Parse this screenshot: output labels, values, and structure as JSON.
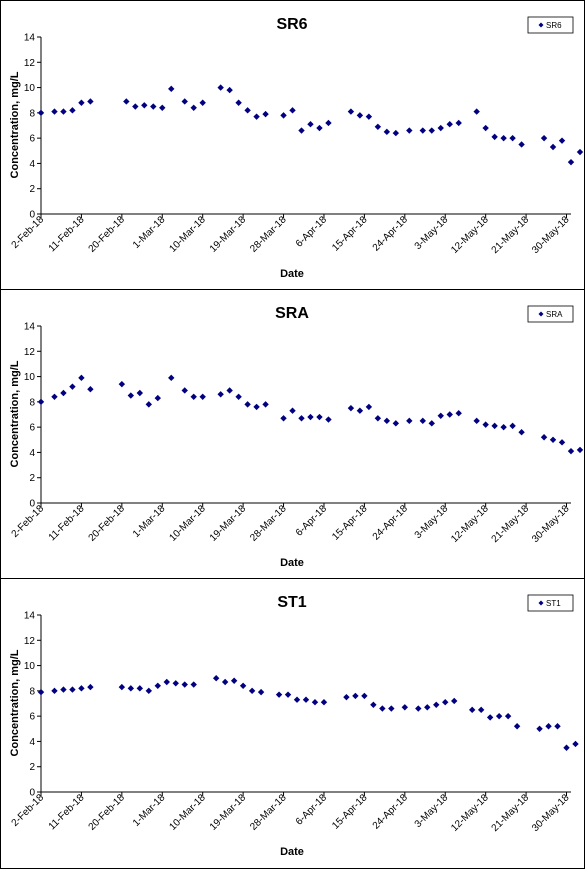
{
  "chart_data": [
    {
      "type": "scatter",
      "title": "SR6",
      "xlabel": "Date",
      "ylabel": "Concentration, mg/L",
      "ylim": [
        0,
        14
      ],
      "yticks": [
        "0",
        "2",
        "4",
        "6",
        "8",
        "10",
        "12",
        "14"
      ],
      "xlim": [
        "2018-02-02",
        "2018-05-31"
      ],
      "xticks": [
        "2-Feb-18",
        "11-Feb-18",
        "20-Feb-18",
        "1-Mar-18",
        "10-Mar-18",
        "19-Mar-18",
        "28-Mar-18",
        "6-Apr-18",
        "15-Apr-18",
        "24-Apr-18",
        "3-May-18",
        "12-May-18",
        "21-May-18",
        "30-May-18"
      ],
      "grid": false,
      "legend_position": "top-right",
      "marker_color": "#000080",
      "series": [
        {
          "name": "SR6",
          "x": [
            "2018-02-02",
            "2018-02-05",
            "2018-02-07",
            "2018-02-09",
            "2018-02-11",
            "2018-02-13",
            "2018-02-16",
            "2018-02-21",
            "2018-02-23",
            "2018-02-25",
            "2018-02-27",
            "2018-03-01",
            "2018-03-03",
            "2018-03-06",
            "2018-03-08",
            "2018-03-10",
            "2018-03-14",
            "2018-03-16",
            "2018-03-18",
            "2018-03-20",
            "2018-03-22",
            "2018-03-24",
            "2018-03-28",
            "2018-03-30",
            "2018-04-01",
            "2018-04-03",
            "2018-04-05",
            "2018-04-07",
            "2018-04-12",
            "2018-04-14",
            "2018-04-16",
            "2018-04-18",
            "2018-04-20",
            "2018-04-22",
            "2018-04-25",
            "2018-04-28",
            "2018-04-30",
            "2018-05-02",
            "2018-05-04",
            "2018-05-06",
            "2018-05-10",
            "2018-05-12",
            "2018-05-14",
            "2018-05-16",
            "2018-05-18",
            "2018-05-20",
            "2018-05-25",
            "2018-05-27",
            "2018-05-29",
            "2018-05-31",
            "2018-06-02"
          ],
          "y": [
            8.0,
            8.1,
            8.1,
            8.2,
            8.8,
            8.9,
            null,
            8.9,
            8.5,
            8.6,
            8.5,
            8.4,
            9.9,
            8.9,
            8.4,
            8.8,
            10.0,
            9.8,
            8.8,
            8.2,
            7.7,
            7.9,
            7.8,
            8.2,
            6.6,
            7.1,
            6.8,
            7.2,
            8.1,
            7.8,
            7.7,
            6.9,
            6.5,
            6.4,
            6.6,
            6.6,
            6.6,
            6.8,
            7.1,
            7.2,
            8.1,
            6.8,
            6.1,
            6.0,
            6.0,
            5.5,
            6.0,
            5.3,
            5.8,
            4.1,
            4.9
          ]
        }
      ]
    },
    {
      "type": "scatter",
      "title": "SRA",
      "xlabel": "Date",
      "ylabel": "Concentration, mg/L",
      "ylim": [
        0,
        14
      ],
      "yticks": [
        "0",
        "2",
        "4",
        "6",
        "8",
        "10",
        "12",
        "14"
      ],
      "xlim": [
        "2018-02-02",
        "2018-05-31"
      ],
      "xticks": [
        "2-Feb-18",
        "11-Feb-18",
        "20-Feb-18",
        "1-Mar-18",
        "10-Mar-18",
        "19-Mar-18",
        "28-Mar-18",
        "6-Apr-18",
        "15-Apr-18",
        "24-Apr-18",
        "3-May-18",
        "12-May-18",
        "21-May-18",
        "30-May-18"
      ],
      "grid": false,
      "legend_position": "top-right",
      "marker_color": "#000080",
      "series": [
        {
          "name": "SRA",
          "x": [
            "2018-02-02",
            "2018-02-05",
            "2018-02-07",
            "2018-02-09",
            "2018-02-11",
            "2018-02-13",
            "2018-02-18",
            "2018-02-20",
            "2018-02-22",
            "2018-02-24",
            "2018-02-26",
            "2018-02-28",
            "2018-03-03",
            "2018-03-06",
            "2018-03-08",
            "2018-03-10",
            "2018-03-14",
            "2018-03-16",
            "2018-03-18",
            "2018-03-20",
            "2018-03-22",
            "2018-03-24",
            "2018-03-28",
            "2018-03-30",
            "2018-04-01",
            "2018-04-03",
            "2018-04-05",
            "2018-04-07",
            "2018-04-12",
            "2018-04-14",
            "2018-04-16",
            "2018-04-18",
            "2018-04-20",
            "2018-04-22",
            "2018-04-25",
            "2018-04-28",
            "2018-04-30",
            "2018-05-02",
            "2018-05-04",
            "2018-05-06",
            "2018-05-10",
            "2018-05-12",
            "2018-05-14",
            "2018-05-16",
            "2018-05-18",
            "2018-05-20",
            "2018-05-25",
            "2018-05-27",
            "2018-05-29",
            "2018-05-31",
            "2018-06-02"
          ],
          "y": [
            8.0,
            8.4,
            8.7,
            9.2,
            9.9,
            9.0,
            null,
            9.4,
            8.5,
            8.7,
            7.8,
            8.3,
            9.9,
            8.9,
            8.4,
            8.4,
            8.6,
            8.9,
            8.4,
            7.8,
            7.6,
            7.8,
            6.7,
            7.3,
            6.7,
            6.8,
            6.8,
            6.6,
            7.5,
            7.3,
            7.6,
            6.7,
            6.5,
            6.3,
            6.5,
            6.5,
            6.3,
            6.9,
            7.0,
            7.1,
            6.5,
            6.2,
            6.1,
            6.0,
            6.1,
            5.6,
            5.2,
            5.0,
            4.8,
            4.1,
            4.2
          ]
        }
      ]
    },
    {
      "type": "scatter",
      "title": "ST1",
      "xlabel": "Date",
      "ylabel": "Concentration, mg/L",
      "ylim": [
        0,
        14
      ],
      "yticks": [
        "0",
        "2",
        "4",
        "6",
        "8",
        "10",
        "12",
        "14"
      ],
      "xlim": [
        "2018-02-02",
        "2018-05-31"
      ],
      "xticks": [
        "2-Feb-18",
        "11-Feb-18",
        "20-Feb-18",
        "1-Mar-18",
        "10-Mar-18",
        "19-Mar-18",
        "28-Mar-18",
        "6-Apr-18",
        "15-Apr-18",
        "24-Apr-18",
        "3-May-18",
        "12-May-18",
        "21-May-18",
        "30-May-18"
      ],
      "grid": false,
      "legend_position": "top-right",
      "marker_color": "#000080",
      "series": [
        {
          "name": "ST1",
          "x": [
            "2018-02-02",
            "2018-02-05",
            "2018-02-07",
            "2018-02-09",
            "2018-02-11",
            "2018-02-13",
            "2018-02-18",
            "2018-02-20",
            "2018-02-22",
            "2018-02-24",
            "2018-02-26",
            "2018-02-28",
            "2018-03-02",
            "2018-03-04",
            "2018-03-06",
            "2018-03-08",
            "2018-03-13",
            "2018-03-15",
            "2018-03-17",
            "2018-03-19",
            "2018-03-21",
            "2018-03-23",
            "2018-03-27",
            "2018-03-29",
            "2018-03-31",
            "2018-04-02",
            "2018-04-04",
            "2018-04-06",
            "2018-04-11",
            "2018-04-13",
            "2018-04-15",
            "2018-04-17",
            "2018-04-19",
            "2018-04-21",
            "2018-04-24",
            "2018-04-27",
            "2018-04-29",
            "2018-05-01",
            "2018-05-03",
            "2018-05-05",
            "2018-05-09",
            "2018-05-11",
            "2018-05-13",
            "2018-05-15",
            "2018-05-17",
            "2018-05-19",
            "2018-05-24",
            "2018-05-26",
            "2018-05-28",
            "2018-05-30",
            "2018-06-01"
          ],
          "y": [
            7.9,
            8.0,
            8.1,
            8.1,
            8.2,
            8.3,
            null,
            8.3,
            8.2,
            8.2,
            8.0,
            8.4,
            8.7,
            8.6,
            8.5,
            8.5,
            9.0,
            8.7,
            8.8,
            8.4,
            8.0,
            7.9,
            7.7,
            7.7,
            7.3,
            7.3,
            7.1,
            7.1,
            7.5,
            7.6,
            7.6,
            6.9,
            6.6,
            6.6,
            6.7,
            6.6,
            6.7,
            6.9,
            7.1,
            7.2,
            6.5,
            6.5,
            5.9,
            6.0,
            6.0,
            5.2,
            5.0,
            5.2,
            5.2,
            3.5,
            3.8
          ]
        }
      ]
    }
  ]
}
